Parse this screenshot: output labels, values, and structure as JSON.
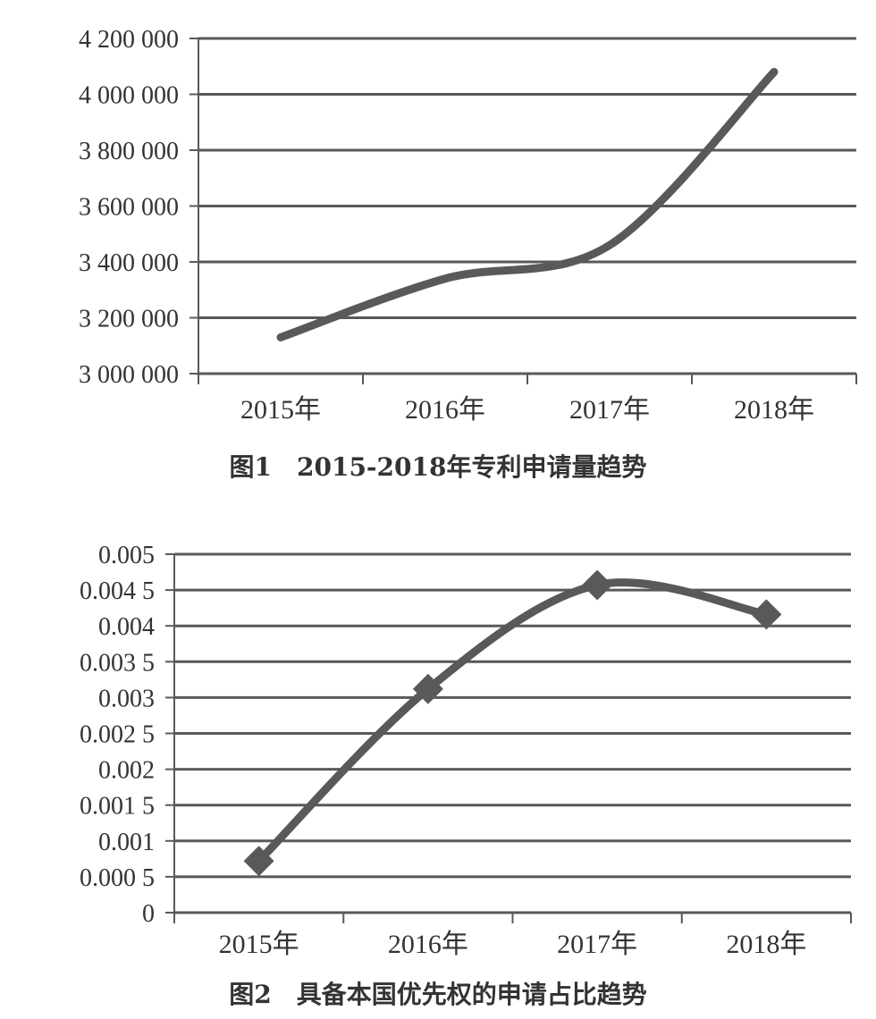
{
  "chart_data": [
    {
      "type": "line",
      "title": "",
      "caption": "图1　2015-2018年专利申请量趋势",
      "categories": [
        "2015年",
        "2016年",
        "2017年",
        "2018年"
      ],
      "y_ticks": [
        "3 000 000",
        "3 200 000",
        "3 400 000",
        "3 600 000",
        "3 800 000",
        "4 000 000",
        "4 200 000"
      ],
      "ylim": [
        3000000,
        4200000
      ],
      "series": [
        {
          "values": [
            3130000,
            3340000,
            3460000,
            4080000
          ],
          "color": "#595959",
          "marker": "none",
          "smooth": true
        }
      ],
      "grid": true,
      "legend": "none"
    },
    {
      "type": "line",
      "title": "",
      "caption": "图2　具备本国优先权的申请占比趋势",
      "categories": [
        "2015年",
        "2016年",
        "2017年",
        "2018年"
      ],
      "y_ticks": [
        "0",
        "0.000 5",
        "0.001",
        "0.001 5",
        "0.002",
        "0.002 5",
        "0.003",
        "0.003 5",
        "0.004",
        "0.004 5",
        "0.005"
      ],
      "ylim": [
        0,
        0.005
      ],
      "series": [
        {
          "values": [
            0.00072,
            0.00312,
            0.00457,
            0.00416
          ],
          "color": "#595959",
          "marker": "diamond",
          "smooth": true
        }
      ],
      "grid": true,
      "legend": "none"
    }
  ]
}
